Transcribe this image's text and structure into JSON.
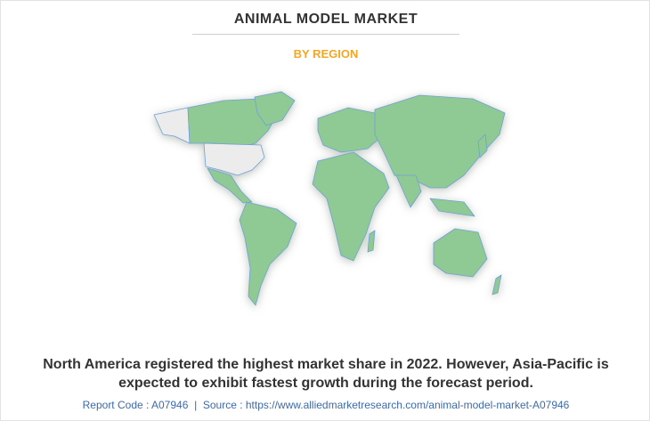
{
  "header": {
    "title": "ANIMAL MODEL MARKET",
    "subtitle": "BY REGION"
  },
  "description": [
    "North America registered the highest market share in 2022. However, Asia-Pacific is",
    "expected to exhibit fastest growth during the forecast period."
  ],
  "footer": {
    "report_code": "Report Code : A07946",
    "separator": "|",
    "source": "Source : https://www.alliedmarketresearch.com/animal-model-market-A07946"
  }
}
